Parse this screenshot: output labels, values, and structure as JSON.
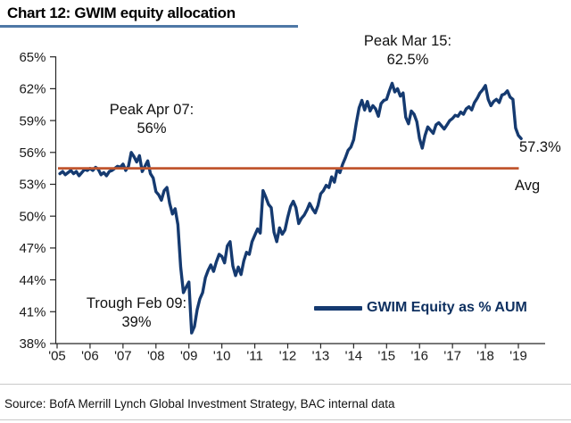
{
  "header": {
    "title": "Chart 12: GWIM equity allocation"
  },
  "footer": {
    "source": "Source:  BofA Merrill Lynch Global Investment Strategy, BAC internal data"
  },
  "colors": {
    "line": "#153a70",
    "avg_line": "#c0562e",
    "title_rule": "#4e78a6",
    "axis": "#262626",
    "tick_text": "#1a1a1a",
    "legend_text": "#0e3060"
  },
  "chart_data": {
    "type": "line",
    "title": "Chart 12: GWIM equity allocation",
    "xlabel": "",
    "ylabel": "",
    "ylim": [
      38,
      65
    ],
    "y_tick_step": 3,
    "grid": false,
    "y_ticks": [
      "65%",
      "62%",
      "59%",
      "56%",
      "53%",
      "50%",
      "47%",
      "44%",
      "41%",
      "38%"
    ],
    "y_tick_values": [
      65,
      62,
      59,
      56,
      53,
      50,
      47,
      44,
      41,
      38
    ],
    "x_ticks": [
      "'05",
      "'06",
      "'07",
      "'08",
      "'09",
      "'10",
      "'11",
      "'12",
      "'13",
      "'14",
      "'15",
      "'16",
      "'17",
      "'18",
      "'19"
    ],
    "legend": {
      "label": "GWIM Equity as % AUM",
      "position": "inside-bottom-right"
    },
    "avg_line": {
      "label": "Avg",
      "value": 54.5
    },
    "annotations": [
      {
        "name": "peak-apr-07",
        "line1": "Peak Apr 07:",
        "line2": "56%"
      },
      {
        "name": "peak-mar-15",
        "line1": "Peak Mar 15:",
        "line2": "62.5%"
      },
      {
        "name": "trough-feb-09",
        "line1": "Trough Feb 09:",
        "line2": "39%"
      },
      {
        "name": "end-value",
        "line1": "57.3%"
      }
    ],
    "series": [
      {
        "name": "GWIM Equity as % AUM",
        "start": "2005-02",
        "frequency": "monthly",
        "values": [
          54.0,
          54.2,
          53.9,
          54.1,
          54.3,
          54.0,
          54.2,
          53.8,
          54.1,
          54.4,
          54.3,
          54.5,
          54.3,
          54.6,
          54.4,
          53.9,
          54.1,
          53.8,
          54.2,
          54.3,
          54.5,
          54.7,
          54.6,
          54.9,
          54.3,
          54.7,
          56.0,
          55.6,
          55.1,
          55.7,
          54.2,
          54.7,
          55.2,
          54.0,
          53.6,
          52.3,
          52.0,
          51.5,
          52.4,
          52.7,
          51.2,
          50.2,
          50.7,
          49.2,
          45.2,
          42.8,
          43.3,
          43.8,
          39.0,
          39.6,
          41.2,
          42.2,
          42.8,
          44.2,
          44.9,
          45.4,
          44.8,
          45.7,
          46.4,
          46.2,
          45.6,
          47.2,
          47.6,
          45.3,
          44.4,
          45.2,
          44.5,
          45.8,
          46.6,
          46.4,
          47.6,
          48.2,
          48.8,
          48.4,
          52.4,
          51.8,
          51.1,
          50.8,
          48.5,
          47.6,
          48.9,
          48.3,
          48.7,
          49.9,
          50.9,
          51.4,
          50.8,
          49.3,
          49.8,
          50.1,
          50.6,
          51.2,
          50.7,
          50.3,
          51.0,
          52.1,
          52.4,
          52.9,
          52.7,
          53.7,
          53.2,
          54.4,
          54.1,
          54.9,
          55.5,
          56.2,
          56.5,
          57.2,
          58.8,
          60.2,
          60.9,
          60.0,
          60.8,
          59.9,
          60.4,
          60.1,
          59.4,
          60.6,
          60.9,
          61.0,
          61.8,
          62.5,
          61.7,
          62.0,
          61.3,
          61.6,
          59.3,
          58.7,
          59.9,
          59.6,
          58.9,
          57.3,
          56.4,
          57.6,
          58.4,
          58.1,
          57.8,
          58.6,
          58.8,
          58.5,
          58.2,
          58.6,
          59.0,
          59.2,
          59.5,
          59.4,
          59.8,
          59.6,
          60.1,
          60.3,
          60.0,
          60.7,
          61.1,
          61.6,
          61.9,
          62.3,
          61.0,
          60.4,
          60.8,
          61.0,
          60.7,
          61.4,
          61.5,
          61.8,
          61.2,
          61.0,
          58.3,
          57.6,
          57.3
        ]
      }
    ]
  }
}
